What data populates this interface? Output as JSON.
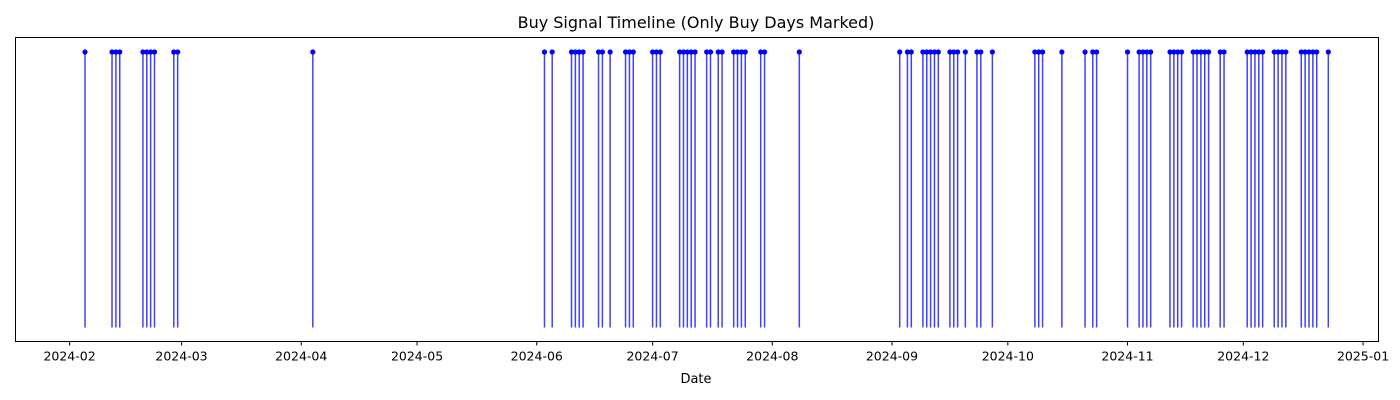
{
  "chart_data": {
    "type": "stem",
    "title": "Buy Signal Timeline (Only Buy Days Marked)",
    "xlabel": "Date",
    "ylabel": "",
    "x_type": "date",
    "xlim": [
      "2024-01-18",
      "2025-01-05"
    ],
    "ylim": [
      0,
      1.05
    ],
    "stem_value": 1,
    "x_ticks": [
      "2024-02",
      "2024-03",
      "2024-04",
      "2024-05",
      "2024-06",
      "2024-07",
      "2024-08",
      "2024-09",
      "2024-10",
      "2024-11",
      "2024-12",
      "2025-01"
    ],
    "x_tick_dates": [
      "2024-02-01",
      "2024-03-01",
      "2024-04-01",
      "2024-05-01",
      "2024-06-01",
      "2024-07-01",
      "2024-08-01",
      "2024-09-01",
      "2024-10-01",
      "2024-11-01",
      "2024-12-01",
      "2025-01-01"
    ],
    "y_ticks_visible": false,
    "grid": false,
    "legend": "none",
    "color": "#0000ff",
    "buy_dates": [
      "2024-02-05",
      "2024-02-12",
      "2024-02-13",
      "2024-02-14",
      "2024-02-20",
      "2024-02-21",
      "2024-02-22",
      "2024-02-23",
      "2024-02-28",
      "2024-02-29",
      "2024-04-04",
      "2024-06-03",
      "2024-06-05",
      "2024-06-10",
      "2024-06-11",
      "2024-06-12",
      "2024-06-13",
      "2024-06-17",
      "2024-06-18",
      "2024-06-20",
      "2024-06-24",
      "2024-06-25",
      "2024-06-26",
      "2024-07-01",
      "2024-07-02",
      "2024-07-03",
      "2024-07-08",
      "2024-07-09",
      "2024-07-10",
      "2024-07-11",
      "2024-07-12",
      "2024-07-15",
      "2024-07-16",
      "2024-07-18",
      "2024-07-19",
      "2024-07-22",
      "2024-07-23",
      "2024-07-24",
      "2024-07-25",
      "2024-07-29",
      "2024-07-30",
      "2024-08-08",
      "2024-09-03",
      "2024-09-05",
      "2024-09-06",
      "2024-09-09",
      "2024-09-10",
      "2024-09-11",
      "2024-09-12",
      "2024-09-13",
      "2024-09-16",
      "2024-09-17",
      "2024-09-18",
      "2024-09-20",
      "2024-09-23",
      "2024-09-24",
      "2024-09-27",
      "2024-10-08",
      "2024-10-09",
      "2024-10-10",
      "2024-10-15",
      "2024-10-21",
      "2024-10-23",
      "2024-10-24",
      "2024-11-01",
      "2024-11-04",
      "2024-11-05",
      "2024-11-06",
      "2024-11-07",
      "2024-11-12",
      "2024-11-13",
      "2024-11-14",
      "2024-11-15",
      "2024-11-18",
      "2024-11-19",
      "2024-11-20",
      "2024-11-21",
      "2024-11-22",
      "2024-11-25",
      "2024-11-26",
      "2024-12-02",
      "2024-12-03",
      "2024-12-04",
      "2024-12-05",
      "2024-12-06",
      "2024-12-09",
      "2024-12-10",
      "2024-12-11",
      "2024-12-12",
      "2024-12-16",
      "2024-12-17",
      "2024-12-18",
      "2024-12-19",
      "2024-12-20",
      "2024-12-23"
    ]
  }
}
